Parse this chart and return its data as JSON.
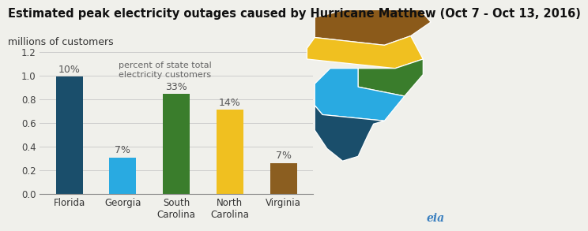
{
  "title": "Estimated peak electricity outages caused by Hurricane Matthew (Oct 7 - Oct 13, 2016)",
  "subtitle": "millions of customers",
  "categories": [
    "Florida",
    "Georgia",
    "South\nCarolina",
    "North\nCarolina",
    "Virginia"
  ],
  "values": [
    0.99,
    0.305,
    0.845,
    0.71,
    0.26
  ],
  "percentages": [
    "10%",
    "7%",
    "33%",
    "14%",
    "7%"
  ],
  "bar_colors": [
    "#1a4e6b",
    "#29aae1",
    "#3a7d2c",
    "#f0c020",
    "#8b5e20"
  ],
  "annotation_text": "percent of state total\nelectricity customers",
  "ylim": [
    0,
    1.25
  ],
  "yticks": [
    0.0,
    0.2,
    0.4,
    0.6,
    0.8,
    1.0,
    1.2
  ],
  "background_color": "#f0f0eb",
  "grid_color": "#cccccc",
  "title_fontsize": 10.5,
  "subtitle_fontsize": 9,
  "label_fontsize": 9,
  "map_colors": {
    "virginia": "#8b5a1a",
    "north_carolina": "#f0c020",
    "south_carolina": "#3a7d2c",
    "georgia": "#29aae1",
    "florida": "#1a4e6b"
  }
}
